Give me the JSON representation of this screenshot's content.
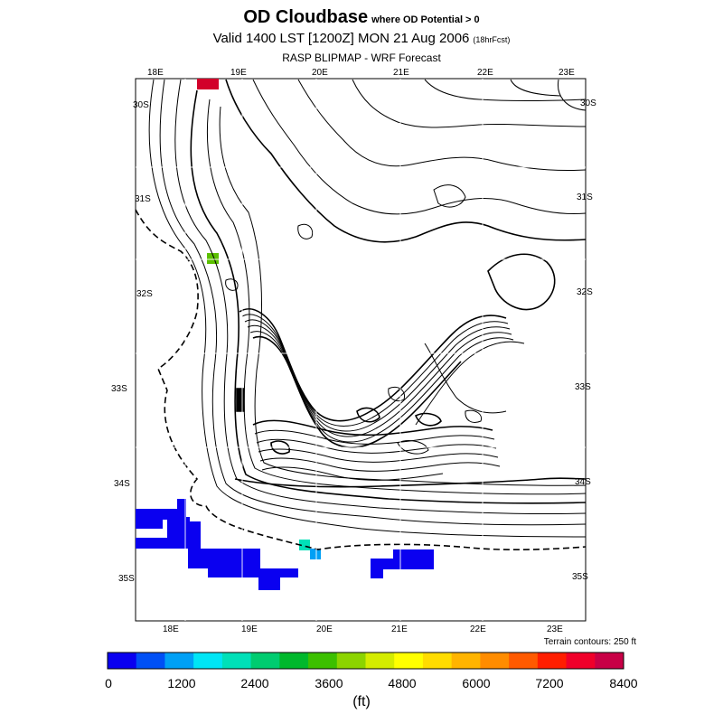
{
  "header": {
    "title": "OD Cloudbase",
    "title_suffix": "where OD Potential > 0",
    "valid_line": "Valid 1400 LST [1200Z] MON 21 Aug 2006",
    "forecast_note": "(18hrFcst)",
    "model_line": "RASP BLIPMAP - WRF Forecast"
  },
  "map": {
    "lon_labels_top": [
      "18E",
      "19E",
      "20E",
      "21E",
      "22E",
      "23E"
    ],
    "lon_labels_bottom": [
      "18E",
      "19E",
      "20E",
      "21E",
      "22E",
      "23E"
    ],
    "lat_labels_left": [
      "30S",
      "31S",
      "32S",
      "33S",
      "34S",
      "35S"
    ],
    "lat_labels_right": [
      "30S",
      "31S",
      "32S",
      "33S",
      "34S",
      "35S"
    ],
    "terrain_note": "Terrain contours: 250 ft",
    "line_color": "#000000"
  },
  "colorbar": {
    "labels": [
      "0",
      "1200",
      "2400",
      "3600",
      "4800",
      "6000",
      "7200",
      "8400"
    ],
    "units": "(ft)",
    "colors": [
      "#0a00f0",
      "#0050f5",
      "#00a0f5",
      "#00e5f5",
      "#00e0b8",
      "#00cc70",
      "#00b82c",
      "#3cc000",
      "#8cd400",
      "#d4ec00",
      "#ffff00",
      "#ffdc00",
      "#ffb400",
      "#ff8c00",
      "#ff5a00",
      "#ff1e00",
      "#f0002a",
      "#c80046"
    ]
  },
  "overlay": {
    "cloudbase_blue": "#0a00f0",
    "cloudbase_green": "#5cc000",
    "cloudbase_cyan_a": "#00e0b8",
    "cloudbase_cyan_b": "#00a0f5",
    "cloudbase_red": "#d2002a"
  }
}
